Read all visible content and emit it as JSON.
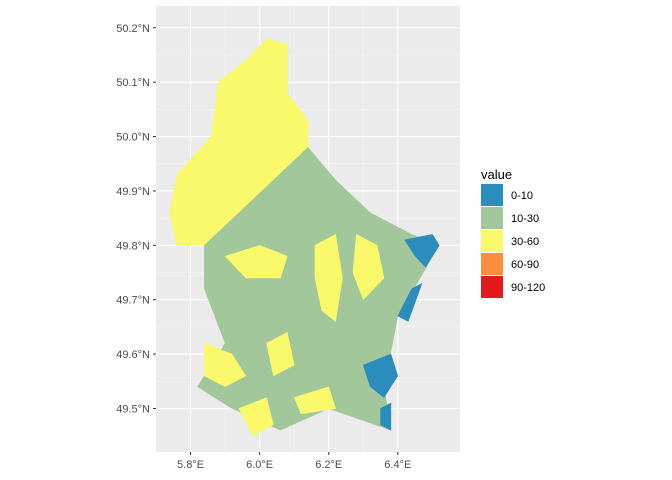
{
  "legend": {
    "title": "value",
    "entries": [
      {
        "label": "0-10",
        "color": "#2b8cbe"
      },
      {
        "label": "10-30",
        "color": "#a1c79b"
      },
      {
        "label": "30-60",
        "color": "#f9f96b"
      },
      {
        "label": "60-90",
        "color": "#fd8d3c"
      },
      {
        "label": "90-120",
        "color": "#e31a1c"
      }
    ]
  },
  "axes": {
    "x": {
      "range": [
        5.7,
        6.58
      ],
      "ticks": [
        {
          "value": 5.8,
          "label": "5.8°E"
        },
        {
          "value": 6.0,
          "label": "6.0°E"
        },
        {
          "value": 6.2,
          "label": "6.2°E"
        },
        {
          "value": 6.4,
          "label": "6.4°E"
        }
      ]
    },
    "y": {
      "range": [
        49.42,
        50.24
      ],
      "ticks": [
        {
          "value": 49.5,
          "label": "49.5°N"
        },
        {
          "value": 49.6,
          "label": "49.6°N"
        },
        {
          "value": 49.7,
          "label": "49.7°N"
        },
        {
          "value": 49.8,
          "label": "49.8°N"
        },
        {
          "value": 49.9,
          "label": "49.9°N"
        },
        {
          "value": 50.0,
          "label": "50.0°N"
        },
        {
          "value": 50.1,
          "label": "50.1°N"
        },
        {
          "value": 50.2,
          "label": "50.2°N"
        }
      ]
    },
    "grid": true
  },
  "map": {
    "type": "raster",
    "country_outline": [
      [
        6.02,
        50.18
      ],
      [
        6.08,
        50.17
      ],
      [
        6.08,
        50.08
      ],
      [
        6.14,
        50.03
      ],
      [
        6.14,
        49.98
      ],
      [
        6.18,
        49.95
      ],
      [
        6.22,
        49.92
      ],
      [
        6.26,
        49.89
      ],
      [
        6.32,
        49.86
      ],
      [
        6.36,
        49.84
      ],
      [
        6.44,
        49.82
      ],
      [
        6.52,
        49.8
      ],
      [
        6.48,
        49.76
      ],
      [
        6.44,
        49.72
      ],
      [
        6.4,
        49.67
      ],
      [
        6.42,
        49.62
      ],
      [
        6.38,
        49.58
      ],
      [
        6.36,
        49.54
      ],
      [
        6.38,
        49.46
      ],
      [
        6.34,
        49.47
      ],
      [
        6.28,
        49.48
      ],
      [
        6.2,
        49.5
      ],
      [
        6.12,
        49.49
      ],
      [
        6.06,
        49.46
      ],
      [
        5.98,
        49.45
      ],
      [
        5.92,
        49.5
      ],
      [
        5.86,
        49.51
      ],
      [
        5.82,
        49.54
      ],
      [
        5.86,
        49.58
      ],
      [
        5.9,
        49.62
      ],
      [
        5.86,
        49.66
      ],
      [
        5.84,
        49.72
      ],
      [
        5.76,
        49.8
      ],
      [
        5.74,
        49.86
      ],
      [
        5.76,
        49.93
      ],
      [
        5.86,
        50.0
      ],
      [
        5.88,
        50.1
      ],
      [
        5.96,
        50.14
      ]
    ],
    "classes": [
      {
        "label": "30-60",
        "region": [
          [
            6.02,
            50.18
          ],
          [
            6.08,
            50.17
          ],
          [
            6.08,
            50.08
          ],
          [
            6.14,
            50.03
          ],
          [
            6.14,
            49.98
          ],
          [
            6.04,
            49.92
          ],
          [
            5.94,
            49.86
          ],
          [
            5.84,
            49.8
          ],
          [
            5.76,
            49.8
          ],
          [
            5.74,
            49.86
          ],
          [
            5.76,
            49.93
          ],
          [
            5.86,
            50.0
          ],
          [
            5.88,
            50.1
          ],
          [
            5.96,
            50.14
          ]
        ]
      },
      {
        "label": "10-30",
        "region": [
          [
            6.14,
            49.98
          ],
          [
            6.22,
            49.92
          ],
          [
            6.32,
            49.86
          ],
          [
            6.44,
            49.82
          ],
          [
            6.52,
            49.8
          ],
          [
            6.4,
            49.67
          ],
          [
            6.36,
            49.54
          ],
          [
            6.38,
            49.46
          ],
          [
            6.2,
            49.5
          ],
          [
            6.06,
            49.46
          ],
          [
            5.92,
            49.5
          ],
          [
            5.82,
            49.54
          ],
          [
            5.9,
            49.62
          ],
          [
            5.84,
            49.72
          ],
          [
            5.84,
            49.8
          ],
          [
            5.94,
            49.86
          ],
          [
            6.04,
            49.92
          ]
        ]
      },
      {
        "label": "30-60",
        "region": [
          [
            6.16,
            49.8
          ],
          [
            6.22,
            49.82
          ],
          [
            6.24,
            49.74
          ],
          [
            6.22,
            49.66
          ],
          [
            6.18,
            49.68
          ],
          [
            6.16,
            49.74
          ]
        ]
      },
      {
        "label": "30-60",
        "region": [
          [
            6.28,
            49.82
          ],
          [
            6.34,
            49.8
          ],
          [
            6.36,
            49.74
          ],
          [
            6.3,
            49.7
          ],
          [
            6.27,
            49.75
          ]
        ]
      },
      {
        "label": "30-60",
        "region": [
          [
            5.9,
            49.78
          ],
          [
            6.0,
            49.8
          ],
          [
            6.08,
            49.78
          ],
          [
            6.06,
            49.74
          ],
          [
            5.96,
            49.74
          ]
        ]
      },
      {
        "label": "30-60",
        "region": [
          [
            5.84,
            49.62
          ],
          [
            5.92,
            49.6
          ],
          [
            5.96,
            49.56
          ],
          [
            5.9,
            49.54
          ],
          [
            5.84,
            49.56
          ]
        ]
      },
      {
        "label": "30-60",
        "region": [
          [
            6.02,
            49.62
          ],
          [
            6.08,
            49.64
          ],
          [
            6.1,
            49.58
          ],
          [
            6.04,
            49.56
          ]
        ]
      },
      {
        "label": "30-60",
        "region": [
          [
            6.1,
            49.52
          ],
          [
            6.2,
            49.54
          ],
          [
            6.22,
            49.5
          ],
          [
            6.12,
            49.49
          ]
        ]
      },
      {
        "label": "30-60",
        "region": [
          [
            5.94,
            49.5
          ],
          [
            6.02,
            49.52
          ],
          [
            6.04,
            49.47
          ],
          [
            5.98,
            49.45
          ]
        ]
      },
      {
        "label": "0-10",
        "region": [
          [
            6.42,
            49.81
          ],
          [
            6.5,
            49.82
          ],
          [
            6.52,
            49.8
          ],
          [
            6.48,
            49.76
          ],
          [
            6.45,
            49.78
          ]
        ]
      },
      {
        "label": "0-10",
        "region": [
          [
            6.44,
            49.72
          ],
          [
            6.47,
            49.73
          ],
          [
            6.43,
            49.66
          ],
          [
            6.4,
            49.67
          ]
        ]
      },
      {
        "label": "0-10",
        "region": [
          [
            6.3,
            49.58
          ],
          [
            6.38,
            49.6
          ],
          [
            6.4,
            49.56
          ],
          [
            6.36,
            49.52
          ],
          [
            6.32,
            49.54
          ]
        ]
      },
      {
        "label": "0-10",
        "region": [
          [
            6.35,
            49.5
          ],
          [
            6.38,
            49.51
          ],
          [
            6.38,
            49.46
          ],
          [
            6.35,
            49.47
          ]
        ]
      }
    ]
  }
}
